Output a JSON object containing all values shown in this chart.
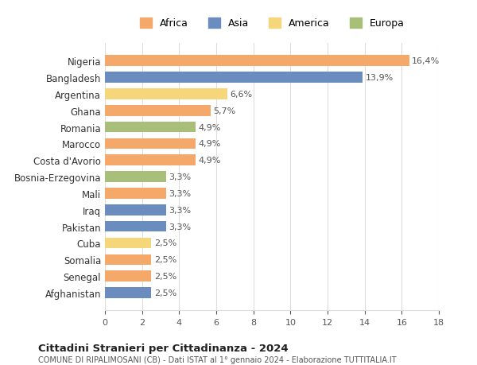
{
  "countries": [
    "Nigeria",
    "Bangladesh",
    "Argentina",
    "Ghana",
    "Romania",
    "Marocco",
    "Costa d'Avorio",
    "Bosnia-Erzegovina",
    "Mali",
    "Iraq",
    "Pakistan",
    "Cuba",
    "Somalia",
    "Senegal",
    "Afghanistan"
  ],
  "values": [
    16.4,
    13.9,
    6.6,
    5.7,
    4.9,
    4.9,
    4.9,
    3.3,
    3.3,
    3.3,
    3.3,
    2.5,
    2.5,
    2.5,
    2.5
  ],
  "labels": [
    "16,4%",
    "13,9%",
    "6,6%",
    "5,7%",
    "4,9%",
    "4,9%",
    "4,9%",
    "3,3%",
    "3,3%",
    "3,3%",
    "3,3%",
    "2,5%",
    "2,5%",
    "2,5%",
    "2,5%"
  ],
  "continents": [
    "Africa",
    "Asia",
    "America",
    "Africa",
    "Europa",
    "Africa",
    "Africa",
    "Europa",
    "Africa",
    "Asia",
    "Asia",
    "America",
    "Africa",
    "Africa",
    "Asia"
  ],
  "continent_colors": {
    "Africa": "#F4A96A",
    "Asia": "#6B8CBF",
    "America": "#F5D67B",
    "Europa": "#A8BF7A"
  },
  "legend_order": [
    "Africa",
    "Asia",
    "America",
    "Europa"
  ],
  "title": "Cittadini Stranieri per Cittadinanza - 2024",
  "subtitle": "COMUNE DI RIPALIMOSANI (CB) - Dati ISTAT al 1° gennaio 2024 - Elaborazione TUTTITALIA.IT",
  "xlim": [
    0,
    18
  ],
  "xticks": [
    0,
    2,
    4,
    6,
    8,
    10,
    12,
    14,
    16,
    18
  ],
  "bg_color": "#ffffff",
  "grid_color": "#dddddd"
}
